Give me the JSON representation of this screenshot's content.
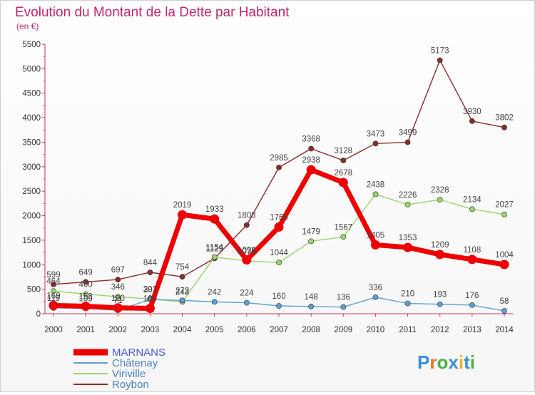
{
  "header": {
    "title": "Evolution du Montant de la Dette par Habitant",
    "subtitle": "(en €)"
  },
  "brand": {
    "logo_text": "Proxiti"
  },
  "chart_data": {
    "type": "line",
    "title": "Evolution du Montant de la Dette par Habitant",
    "subtitle": "(en €)",
    "xlabel": "",
    "ylabel": "",
    "x": [
      "2000",
      "2001",
      "2002",
      "2003",
      "2004",
      "2005",
      "2006",
      "2007",
      "2008",
      "2009",
      "2010",
      "2011",
      "2012",
      "2013",
      "2014"
    ],
    "ylim": [
      0,
      5500
    ],
    "yticks": [
      "0",
      "500",
      "1000",
      "1500",
      "2000",
      "2500",
      "3000",
      "3500",
      "4000",
      "4500",
      "5000",
      "5500"
    ],
    "grid": false,
    "legend_position": "bottom-left",
    "series": [
      {
        "name": "MARNANS",
        "color": "#ee0000",
        "values": [
          169,
          152,
          120,
          109,
          2019,
          1933,
          1098,
          1769,
          2938,
          2678,
          1405,
          1353,
          1209,
          1108,
          1004
        ],
        "labels": [
          "169",
          "152",
          "120",
          "109",
          "2019",
          "1933",
          "1098",
          "1769",
          "2938",
          "2678",
          "1405",
          "1353",
          "1209",
          "1108",
          "1004"
        ]
      },
      {
        "name": "Châtenay",
        "color": "#5e9fd3",
        "values": [
          119,
          109,
          71,
          291,
          272,
          242,
          224,
          160,
          148,
          136,
          336,
          210,
          193,
          176,
          58
        ],
        "labels": [
          "119",
          "109",
          "71",
          "291",
          "272",
          "242",
          "224",
          "160",
          "148",
          "136",
          "336",
          "210",
          "193",
          "176",
          "58"
        ]
      },
      {
        "name": "Viriville",
        "color": "#98d66b",
        "values": [
          464,
          400,
          346,
          301,
          243,
          1154,
          1078,
          1044,
          1479,
          1567,
          2438,
          2226,
          2328,
          2134,
          2027
        ],
        "labels": [
          "464",
          "400",
          "346",
          "301",
          "243",
          "1154",
          "1078",
          "1044",
          "1479",
          "1567",
          "2438",
          "2226",
          "2328",
          "2134",
          "2027"
        ]
      },
      {
        "name": "Roybon",
        "color": "#8b2b2b",
        "values": [
          599,
          649,
          697,
          844,
          754,
          1129,
          1808,
          2985,
          3368,
          3128,
          3473,
          3499,
          5173,
          3930,
          3802
        ],
        "labels": [
          "599",
          "649",
          "697",
          "844",
          "754",
          "1129",
          "1808",
          "2985",
          "3368",
          "3128",
          "3473",
          "3499",
          "5173",
          "3930",
          "3802"
        ]
      }
    ]
  }
}
